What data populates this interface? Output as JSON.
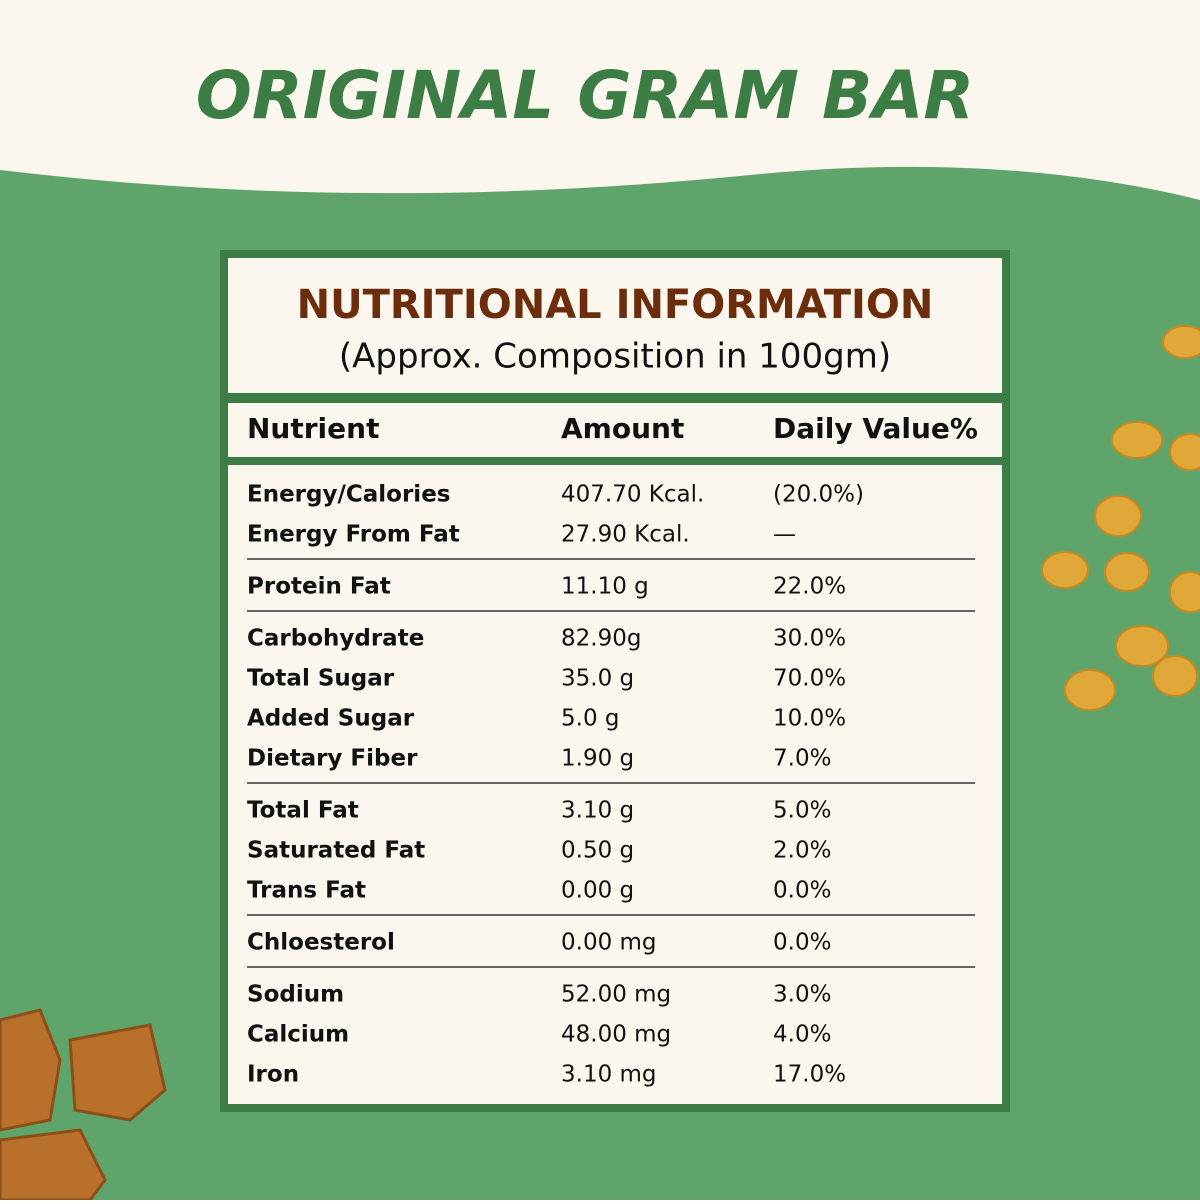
{
  "title": "ORIGINAL GRAM BAR",
  "panel": {
    "heading": "NUTRITIONAL INFORMATION",
    "subheading": "(Approx. Composition in 100gm)",
    "columns": [
      "Nutrient",
      "Amount",
      "Daily Value%"
    ],
    "groups": [
      [
        [
          "Energy/Calories",
          "407.70 Kcal.",
          "(20.0%)"
        ],
        [
          "Energy From Fat",
          "27.90 Kcal.",
          "—"
        ]
      ],
      [
        [
          "Protein Fat",
          "11.10 g",
          "22.0%"
        ]
      ],
      [
        [
          "Carbohydrate",
          "82.90g",
          "30.0%"
        ],
        [
          "Total Sugar",
          "35.0 g",
          "70.0%"
        ],
        [
          "Added Sugar",
          "5.0 g",
          "10.0%"
        ],
        [
          "Dietary Fiber",
          "1.90 g",
          "7.0%"
        ]
      ],
      [
        [
          "Total Fat",
          "3.10 g",
          "5.0%"
        ],
        [
          "Saturated Fat",
          "0.50 g",
          "2.0%"
        ],
        [
          "Trans Fat",
          "0.00 g",
          "0.0%"
        ]
      ],
      [
        [
          "Chloesterol",
          "0.00 mg",
          "0.0%"
        ]
      ],
      [
        [
          "Sodium",
          "52.00 mg",
          "3.0%"
        ],
        [
          "Calcium",
          "48.00 mg",
          "4.0%"
        ],
        [
          "Iron",
          "3.10 mg",
          "17.0%"
        ]
      ]
    ]
  }
}
